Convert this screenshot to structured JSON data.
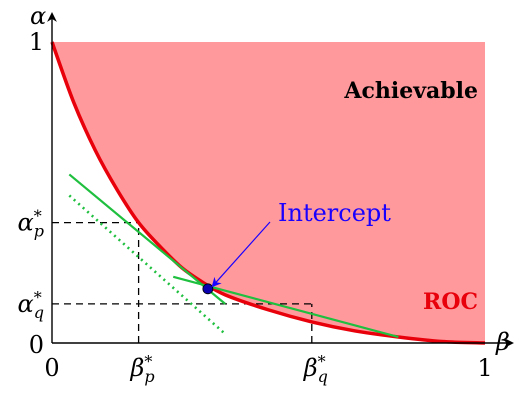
{
  "chart_data": {
    "type": "line",
    "title": "",
    "xlabel": "β",
    "ylabel": "α",
    "xlim": [
      0,
      1
    ],
    "ylim": [
      0,
      1
    ],
    "grid": false,
    "x_ticks": [
      {
        "value": 0,
        "base": "0",
        "sub": "",
        "sup": ""
      },
      {
        "value": 0.2,
        "base": "β",
        "sub": "p",
        "sup": "*"
      },
      {
        "value": 0.6,
        "base": "β",
        "sub": "q",
        "sup": "*"
      },
      {
        "value": 1,
        "base": "1",
        "sub": "",
        "sup": ""
      }
    ],
    "y_ticks": [
      {
        "value": 0,
        "base": "0",
        "sub": "",
        "sup": ""
      },
      {
        "value": 0.13,
        "base": "α",
        "sub": "q",
        "sup": "*"
      },
      {
        "value": 0.4,
        "base": "α",
        "sub": "p",
        "sup": "*"
      },
      {
        "value": 1,
        "base": "1",
        "sub": "",
        "sup": ""
      }
    ],
    "series": [
      {
        "kind": "roc-curve",
        "color": "#e8000b",
        "points": [
          [
            0,
            1
          ],
          [
            0.05,
            0.8
          ],
          [
            0.1,
            0.64
          ],
          [
            0.15,
            0.51
          ],
          [
            0.2,
            0.4
          ],
          [
            0.25,
            0.32
          ],
          [
            0.3,
            0.25
          ],
          [
            0.35,
            0.2
          ],
          [
            0.4,
            0.16
          ],
          [
            0.5,
            0.11
          ],
          [
            0.6,
            0.07
          ],
          [
            0.7,
            0.04
          ],
          [
            0.8,
            0.02
          ],
          [
            0.9,
            0.005
          ],
          [
            1,
            0
          ]
        ]
      },
      {
        "kind": "tangent-at-p",
        "color": "#1fbf3f",
        "points": [
          [
            0.04,
            0.56
          ],
          [
            0.4,
            0.13
          ]
        ]
      },
      {
        "kind": "tangent-at-q",
        "color": "#1fbf3f",
        "points": [
          [
            0.28,
            0.22
          ],
          [
            0.8,
            0.02
          ]
        ]
      },
      {
        "kind": "parallel-dotted",
        "color": "#1fbf3f",
        "style": "dotted",
        "points": [
          [
            0.04,
            0.49
          ],
          [
            0.4,
            0.03
          ]
        ]
      }
    ],
    "points": [
      {
        "name": "intercept",
        "x": 0.36,
        "y": 0.18,
        "color": "#0a00b0"
      }
    ],
    "reference_lines": [
      {
        "from": [
          0,
          0.4
        ],
        "to": [
          0.2,
          0.4
        ],
        "style": "dashed"
      },
      {
        "from": [
          0.2,
          0
        ],
        "to": [
          0.2,
          0.4
        ],
        "style": "dashed"
      },
      {
        "from": [
          0,
          0.13
        ],
        "to": [
          0.6,
          0.13
        ],
        "style": "dashed"
      },
      {
        "from": [
          0.6,
          0
        ],
        "to": [
          0.6,
          0.13
        ],
        "style": "dashed"
      }
    ],
    "region": {
      "label": "Achievable",
      "fill": "#ff999c"
    },
    "curve_label": "ROC",
    "annotations": [
      {
        "text": "Intercept",
        "target": [
          0.36,
          0.18
        ],
        "text_anchor": [
          0.6,
          0.45
        ],
        "color": "#1a00ff"
      }
    ]
  }
}
